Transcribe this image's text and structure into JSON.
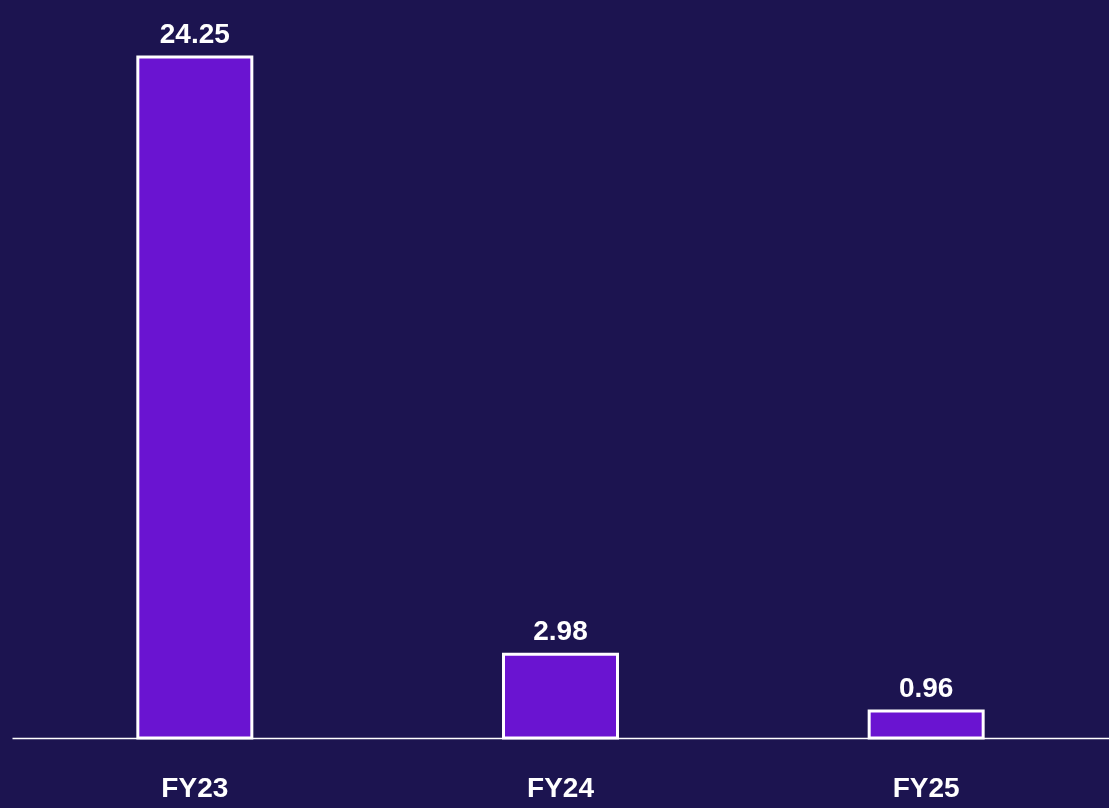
{
  "chart_data": {
    "type": "bar",
    "categories": [
      "FY23",
      "FY24",
      "FY25"
    ],
    "values": [
      24.25,
      2.98,
      0.96
    ],
    "color": "#6a14d1",
    "data_labels": true,
    "grid": false
  }
}
